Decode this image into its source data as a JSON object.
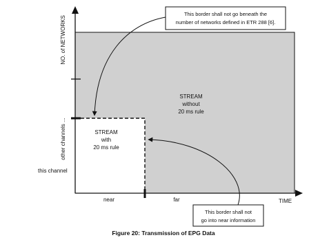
{
  "diagram": {
    "y_axis": {
      "title": "NO. of NETWORKS",
      "label_other": "other channels ...",
      "label_this": "this channel"
    },
    "x_axis": {
      "title": "TIME",
      "label_near": "near",
      "label_far": "far"
    },
    "region_without": {
      "line1": "STREAM",
      "line2": "without",
      "line3": "20 ms rule"
    },
    "region_with": {
      "line1": "STREAM",
      "line2": "with",
      "line3": "20 ms rule"
    },
    "callout_top": {
      "line1": "This border shall not go beneath the",
      "line2": "number of networks defined in ETR 288 [6]."
    },
    "callout_bottom": {
      "line1": "This border shall not",
      "line2": "go into near information"
    },
    "caption": "Figure 20: Transmission of EPG Data"
  },
  "colors": {
    "shaded_region": "#d0d0d0",
    "white_region": "#ffffff",
    "lines": "#111111"
  }
}
